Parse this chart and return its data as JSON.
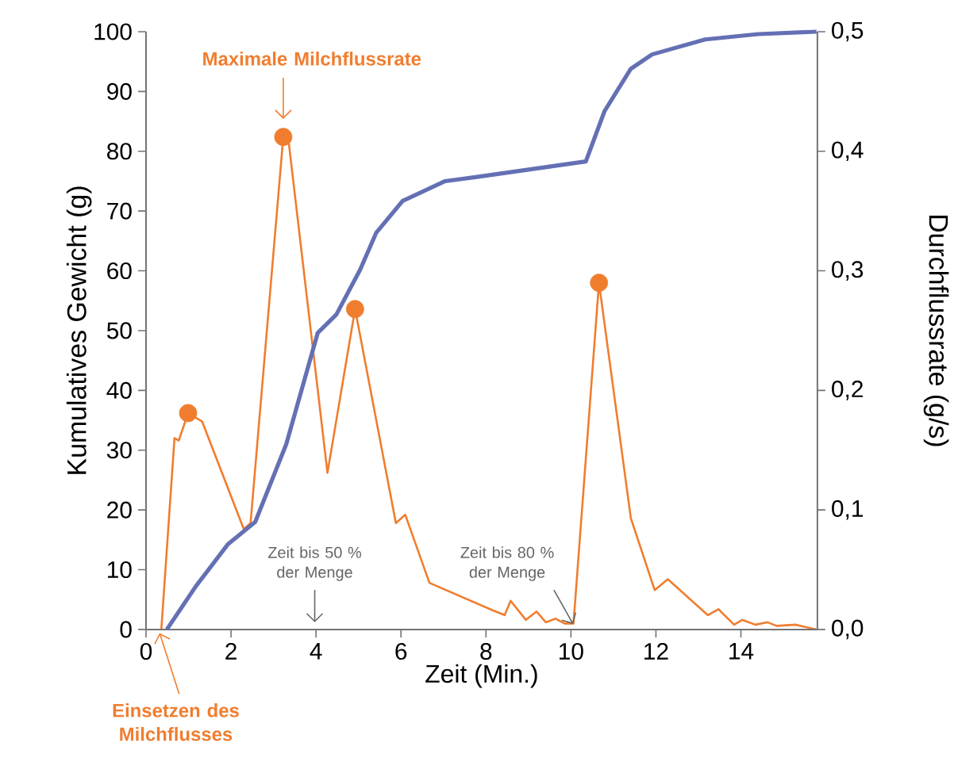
{
  "chart_data": {
    "type": "line",
    "xlabel": "Zeit (Min.)",
    "ylabel": "Kumulatives Gewicht (g)",
    "y2label": "Durchflussrate (g/s)",
    "xlim": [
      0,
      15.8
    ],
    "xticks": [
      0,
      2,
      4,
      6,
      8,
      10,
      12,
      14
    ],
    "ylim": [
      0,
      100
    ],
    "yticks": [
      0,
      10,
      20,
      30,
      40,
      50,
      60,
      70,
      80,
      90,
      100
    ],
    "y2lim": [
      0,
      0.5
    ],
    "y2ticks": [
      {
        "value": 0,
        "label": "0,0"
      },
      {
        "value": 0.1,
        "label": "0,1"
      },
      {
        "value": 0.2,
        "label": "0,2"
      },
      {
        "value": 0.3,
        "label": "0,3"
      },
      {
        "value": 0.4,
        "label": "0,4"
      },
      {
        "value": 0.5,
        "label": "0,5"
      }
    ],
    "grid": false,
    "annotations": [
      {
        "text": "Maximale Milchflussrate",
        "x": 3.23,
        "y": 85
      },
      {
        "text": "Einsetzen des Milchflusses",
        "x": 0.32,
        "y": 0
      },
      "Zeit bis 50 % der Menge",
      {
        "text": "Zeit bis 80 % der Menge",
        "x": 10.1,
        "y": 0
      }
    ],
    "series": [
      {
        "axis": "y2",
        "color": "#f07d2e",
        "x": [
          0.36,
          0.67,
          0.77,
          0.99,
          1.32,
          2.3,
          2.46,
          3.23,
          3.36,
          4.27,
          4.92,
          5.88,
          6.1,
          6.67,
          8.16,
          8.44,
          8.58,
          8.94,
          9.19,
          9.41,
          9.64,
          9.85,
          10.06,
          10.66,
          11.41,
          11.97,
          12.28,
          13.22,
          13.47,
          13.84,
          14.03,
          14.34,
          14.63,
          14.84,
          15.28,
          15.78
        ],
        "values": [
          0,
          0.16,
          0.158,
          0.181,
          0.174,
          0.084,
          0.089,
          0.412,
          0.407,
          0.131,
          0.268,
          0.089,
          0.096,
          0.039,
          0.016,
          0.012,
          0.024,
          0.008,
          0.015,
          0.006,
          0.009,
          0.005,
          0.005,
          0.29,
          0.093,
          0.033,
          0.042,
          0.012,
          0.017,
          0.004,
          0.008,
          0.004,
          0.006,
          0.003,
          0.004,
          0
        ]
      },
      {
        "type": "scatter",
        "axis": "y2",
        "color": "#f07d2e",
        "marker": "circle",
        "x": [
          0.99,
          3.23,
          4.92,
          10.66
        ],
        "values": [
          0.181,
          0.412,
          0.268,
          0.29
        ]
      },
      {
        "color": "#6470b4",
        "x": [
          0.49,
          1.17,
          1.92,
          2.57,
          3.3,
          4.04,
          4.48,
          5.04,
          5.42,
          6.04,
          7.04,
          7.79,
          10.35,
          10.79,
          11.41,
          11.91,
          13.16,
          14.41,
          15.78
        ],
        "values": [
          0,
          7.2,
          14.2,
          18,
          31,
          49.6,
          52.7,
          60.2,
          66.4,
          71.7,
          75,
          75.7,
          78.3,
          86.7,
          93.8,
          96.2,
          98.7,
          99.6,
          100
        ]
      }
    ]
  }
}
